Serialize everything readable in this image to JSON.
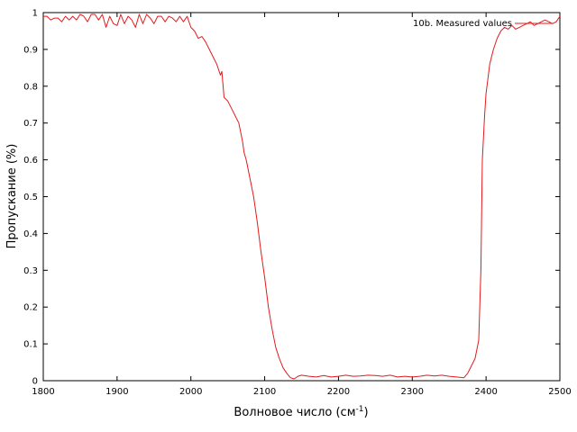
{
  "chart_data": {
    "type": "line",
    "title": "",
    "xlabel": "Волновое число (см",
    "xlabel_sup": "-1",
    "xlabel_close": ")",
    "ylabel": "Пропускание (%)",
    "xlim": [
      1800,
      2500
    ],
    "ylim": [
      0,
      1
    ],
    "x_ticks": [
      1800,
      1900,
      2000,
      2100,
      2200,
      2300,
      2400,
      2500
    ],
    "y_ticks": [
      0,
      0.1,
      0.2,
      0.3,
      0.4,
      0.5,
      0.6,
      0.7,
      0.8,
      0.9,
      1
    ],
    "grid": false,
    "legend_position": "top-right",
    "series": [
      {
        "name": "10b. Measured values",
        "color": "#e41a1c",
        "x": [
          1800,
          1805,
          1810,
          1815,
          1820,
          1825,
          1830,
          1835,
          1840,
          1845,
          1850,
          1855,
          1860,
          1865,
          1870,
          1875,
          1880,
          1885,
          1890,
          1895,
          1900,
          1905,
          1910,
          1915,
          1920,
          1925,
          1930,
          1935,
          1940,
          1945,
          1950,
          1955,
          1960,
          1965,
          1970,
          1975,
          1980,
          1985,
          1990,
          1995,
          2000,
          2005,
          2010,
          2015,
          2020,
          2025,
          2030,
          2035,
          2040,
          2042,
          2045,
          2050,
          2055,
          2060,
          2065,
          2070,
          2072,
          2075,
          2080,
          2085,
          2090,
          2095,
          2100,
          2105,
          2110,
          2115,
          2120,
          2125,
          2130,
          2135,
          2140,
          2145,
          2150,
          2160,
          2170,
          2180,
          2190,
          2200,
          2210,
          2220,
          2230,
          2240,
          2250,
          2260,
          2270,
          2280,
          2290,
          2300,
          2310,
          2320,
          2330,
          2340,
          2350,
          2360,
          2370,
          2375,
          2380,
          2385,
          2390,
          2393,
          2395,
          2398,
          2400,
          2405,
          2410,
          2415,
          2420,
          2425,
          2430,
          2435,
          2440,
          2445,
          2450,
          2455,
          2460,
          2465,
          2470,
          2475,
          2480,
          2485,
          2490,
          2495,
          2500
        ],
        "y": [
          0.99,
          0.99,
          0.98,
          0.985,
          0.985,
          0.975,
          0.99,
          0.98,
          0.99,
          0.98,
          0.995,
          0.99,
          0.975,
          0.995,
          0.995,
          0.98,
          0.995,
          0.96,
          0.99,
          0.97,
          0.965,
          0.995,
          0.97,
          0.99,
          0.98,
          0.96,
          0.995,
          0.97,
          0.995,
          0.985,
          0.97,
          0.99,
          0.99,
          0.975,
          0.99,
          0.985,
          0.975,
          0.99,
          0.975,
          0.99,
          0.96,
          0.95,
          0.93,
          0.935,
          0.92,
          0.9,
          0.88,
          0.86,
          0.83,
          0.84,
          0.77,
          0.76,
          0.74,
          0.72,
          0.7,
          0.65,
          0.62,
          0.6,
          0.55,
          0.5,
          0.43,
          0.35,
          0.28,
          0.2,
          0.14,
          0.09,
          0.06,
          0.035,
          0.02,
          0.008,
          0.005,
          0.012,
          0.015,
          0.012,
          0.01,
          0.014,
          0.01,
          0.012,
          0.015,
          0.012,
          0.013,
          0.015,
          0.014,
          0.012,
          0.015,
          0.01,
          0.012,
          0.01,
          0.012,
          0.015,
          0.013,
          0.015,
          0.012,
          0.01,
          0.008,
          0.02,
          0.04,
          0.06,
          0.11,
          0.3,
          0.6,
          0.72,
          0.78,
          0.86,
          0.9,
          0.93,
          0.95,
          0.96,
          0.955,
          0.965,
          0.955,
          0.96,
          0.965,
          0.97,
          0.975,
          0.965,
          0.97,
          0.975,
          0.98,
          0.975,
          0.97,
          0.975,
          0.99
        ]
      }
    ]
  }
}
